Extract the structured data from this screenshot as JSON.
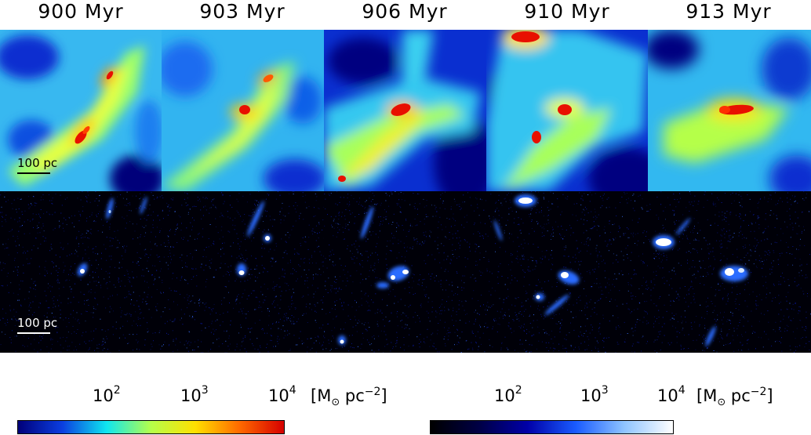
{
  "columns": [
    {
      "time": "900 Myr"
    },
    {
      "time": "903 Myr"
    },
    {
      "time": "906 Myr"
    },
    {
      "time": "910 Myr"
    },
    {
      "time": "913 Myr"
    }
  ],
  "scale_bar_label": "100 pc",
  "colorbars": [
    {
      "ticks": [
        {
          "base": "10",
          "exp": "2"
        },
        {
          "base": "10",
          "exp": "3"
        },
        {
          "base": "10",
          "exp": "4"
        }
      ],
      "unit": {
        "open": "[M",
        "sub": "⊙",
        "mid": " pc",
        "exp": "−2",
        "close": "]"
      },
      "colors": [
        "#00007a",
        "#0b3ee0",
        "#0fe6f0",
        "#b5ff4a",
        "#ffe000",
        "#ff6a00",
        "#d60000"
      ]
    },
    {
      "ticks": [
        {
          "base": "10",
          "exp": "2"
        },
        {
          "base": "10",
          "exp": "3"
        },
        {
          "base": "10",
          "exp": "4"
        }
      ],
      "unit": {
        "open": "[M",
        "sub": "⊙",
        "mid": " pc",
        "exp": "−2",
        "close": "]"
      },
      "colors": [
        "#000000",
        "#000045",
        "#0000a8",
        "#1a5cff",
        "#8fc4ff",
        "#ffffff"
      ]
    }
  ]
}
